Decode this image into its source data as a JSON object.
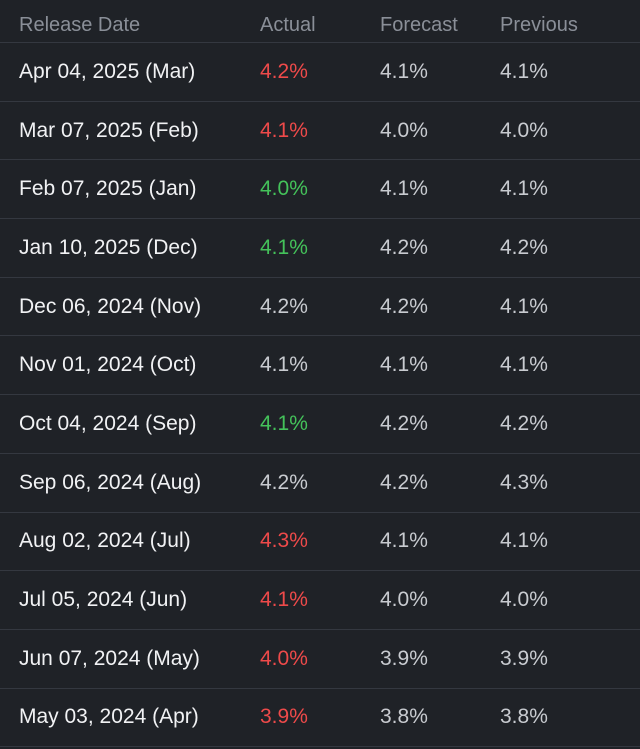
{
  "columns": {
    "release_date": "Release Date",
    "actual": "Actual",
    "forecast": "Forecast",
    "previous": "Previous"
  },
  "colors": {
    "background": "#1f2227",
    "green": "#44c25a",
    "red": "#ee4a4a"
  },
  "rows": [
    {
      "date": "Apr 04, 2025 (Mar)",
      "actual": "4.2%",
      "actual_status": "down",
      "forecast": "4.1%",
      "previous": "4.1%"
    },
    {
      "date": "Mar 07, 2025 (Feb)",
      "actual": "4.1%",
      "actual_status": "down",
      "forecast": "4.0%",
      "previous": "4.0%"
    },
    {
      "date": "Feb 07, 2025 (Jan)",
      "actual": "4.0%",
      "actual_status": "up",
      "forecast": "4.1%",
      "previous": "4.1%"
    },
    {
      "date": "Jan 10, 2025 (Dec)",
      "actual": "4.1%",
      "actual_status": "up",
      "forecast": "4.2%",
      "previous": "4.2%"
    },
    {
      "date": "Dec 06, 2024 (Nov)",
      "actual": "4.2%",
      "actual_status": "neutral",
      "forecast": "4.2%",
      "previous": "4.1%"
    },
    {
      "date": "Nov 01, 2024 (Oct)",
      "actual": "4.1%",
      "actual_status": "neutral",
      "forecast": "4.1%",
      "previous": "4.1%"
    },
    {
      "date": "Oct 04, 2024 (Sep)",
      "actual": "4.1%",
      "actual_status": "up",
      "forecast": "4.2%",
      "previous": "4.2%"
    },
    {
      "date": "Sep 06, 2024 (Aug)",
      "actual": "4.2%",
      "actual_status": "neutral",
      "forecast": "4.2%",
      "previous": "4.3%"
    },
    {
      "date": "Aug 02, 2024 (Jul)",
      "actual": "4.3%",
      "actual_status": "down",
      "forecast": "4.1%",
      "previous": "4.1%"
    },
    {
      "date": "Jul 05, 2024 (Jun)",
      "actual": "4.1%",
      "actual_status": "down",
      "forecast": "4.0%",
      "previous": "4.0%"
    },
    {
      "date": "Jun 07, 2024 (May)",
      "actual": "4.0%",
      "actual_status": "down",
      "forecast": "3.9%",
      "previous": "3.9%"
    },
    {
      "date": "May 03, 2024 (Apr)",
      "actual": "3.9%",
      "actual_status": "down",
      "forecast": "3.8%",
      "previous": "3.8%"
    }
  ]
}
